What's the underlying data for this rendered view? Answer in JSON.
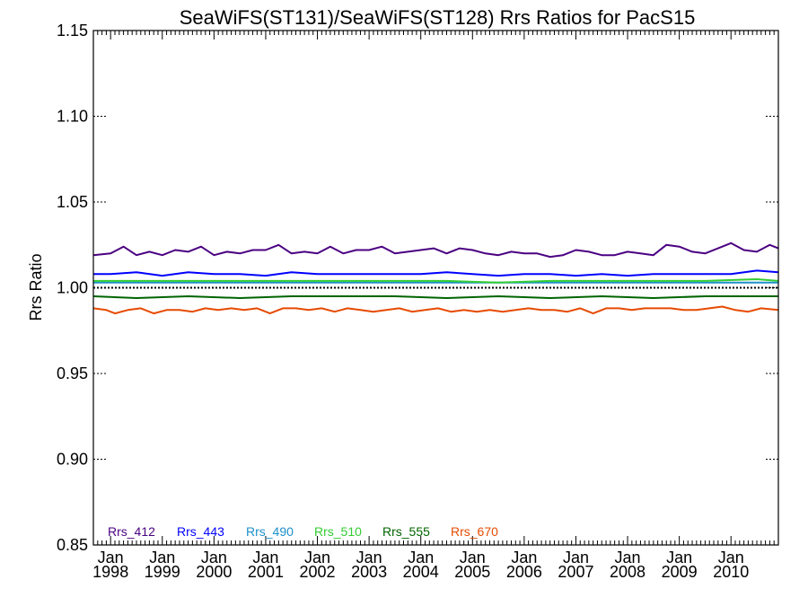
{
  "chart_data": {
    "type": "line",
    "title": "SeaWiFS(ST131)/SeaWiFS(ST128)  Rrs Ratios for PacS15",
    "xlabel": "",
    "ylabel": "Rrs Ratio",
    "ylim": [
      0.85,
      1.15
    ],
    "yticks": [
      "0.85",
      "0.90",
      "0.95",
      "1.00",
      "1.05",
      "1.10",
      "1.15"
    ],
    "x_range": [
      "1997-09",
      "2010-12"
    ],
    "x_ticks": [
      {
        "month": "Jan",
        "year": "1998"
      },
      {
        "month": "Jan",
        "year": "1999"
      },
      {
        "month": "Jan",
        "year": "2000"
      },
      {
        "month": "Jan",
        "year": "2001"
      },
      {
        "month": "Jan",
        "year": "2002"
      },
      {
        "month": "Jan",
        "year": "2003"
      },
      {
        "month": "Jan",
        "year": "2004"
      },
      {
        "month": "Jan",
        "year": "2005"
      },
      {
        "month": "Jan",
        "year": "2006"
      },
      {
        "month": "Jan",
        "year": "2007"
      },
      {
        "month": "Jan",
        "year": "2008"
      },
      {
        "month": "Jan",
        "year": "2009"
      },
      {
        "month": "Jan",
        "year": "2010"
      }
    ],
    "reference_line": 1.0,
    "grid": false,
    "legend_position": "bottom-left",
    "series": [
      {
        "name": "Rrs_412",
        "color": "#4b0082",
        "x": [
          "1997-09",
          "1998-01",
          "1998-04",
          "1998-07",
          "1998-10",
          "1999-01",
          "1999-04",
          "1999-07",
          "1999-10",
          "2000-01",
          "2000-04",
          "2000-07",
          "2000-10",
          "2001-01",
          "2001-04",
          "2001-07",
          "2001-10",
          "2002-01",
          "2002-04",
          "2002-07",
          "2002-10",
          "2003-01",
          "2003-04",
          "2003-07",
          "2003-10",
          "2004-01",
          "2004-04",
          "2004-07",
          "2004-10",
          "2005-01",
          "2005-04",
          "2005-07",
          "2005-10",
          "2006-01",
          "2006-04",
          "2006-07",
          "2006-10",
          "2007-01",
          "2007-04",
          "2007-07",
          "2007-10",
          "2008-01",
          "2008-04",
          "2008-07",
          "2008-10",
          "2009-01",
          "2009-04",
          "2009-07",
          "2009-10",
          "2010-01",
          "2010-04",
          "2010-07",
          "2010-10",
          "2010-12"
        ],
        "y": [
          1.019,
          1.02,
          1.024,
          1.019,
          1.021,
          1.019,
          1.022,
          1.021,
          1.024,
          1.019,
          1.021,
          1.02,
          1.022,
          1.022,
          1.025,
          1.02,
          1.021,
          1.02,
          1.024,
          1.02,
          1.022,
          1.022,
          1.024,
          1.02,
          1.021,
          1.022,
          1.023,
          1.02,
          1.023,
          1.022,
          1.02,
          1.019,
          1.021,
          1.02,
          1.02,
          1.018,
          1.019,
          1.022,
          1.021,
          1.019,
          1.019,
          1.021,
          1.02,
          1.019,
          1.025,
          1.024,
          1.021,
          1.02,
          1.023,
          1.026,
          1.022,
          1.021,
          1.025,
          1.023
        ]
      },
      {
        "name": "Rrs_443",
        "color": "#0000ff",
        "x": [
          "1997-09",
          "1998-01",
          "1998-07",
          "1999-01",
          "1999-07",
          "2000-01",
          "2000-07",
          "2001-01",
          "2001-07",
          "2002-01",
          "2002-07",
          "2003-01",
          "2003-07",
          "2004-01",
          "2004-07",
          "2005-01",
          "2005-07",
          "2006-01",
          "2006-07",
          "2007-01",
          "2007-07",
          "2008-01",
          "2008-07",
          "2009-01",
          "2009-07",
          "2010-01",
          "2010-07",
          "2010-12"
        ],
        "y": [
          1.008,
          1.008,
          1.009,
          1.007,
          1.009,
          1.008,
          1.008,
          1.007,
          1.009,
          1.008,
          1.008,
          1.008,
          1.008,
          1.008,
          1.009,
          1.008,
          1.007,
          1.008,
          1.008,
          1.007,
          1.008,
          1.007,
          1.008,
          1.008,
          1.008,
          1.008,
          1.01,
          1.009
        ]
      },
      {
        "name": "Rrs_490",
        "color": "#1e90c8",
        "x": [
          "1997-09",
          "1998-07",
          "1999-07",
          "2000-07",
          "2001-07",
          "2002-07",
          "2003-07",
          "2004-07",
          "2005-07",
          "2006-07",
          "2007-07",
          "2008-07",
          "2009-07",
          "2010-07",
          "2010-12"
        ],
        "y": [
          1.003,
          1.003,
          1.003,
          1.003,
          1.003,
          1.003,
          1.003,
          1.003,
          1.003,
          1.003,
          1.003,
          1.003,
          1.003,
          1.003,
          1.003
        ]
      },
      {
        "name": "Rrs_510",
        "color": "#33cc33",
        "x": [
          "1997-09",
          "1998-07",
          "1999-07",
          "2000-07",
          "2001-07",
          "2002-07",
          "2003-07",
          "2004-07",
          "2005-07",
          "2006-07",
          "2007-07",
          "2008-07",
          "2009-07",
          "2010-07",
          "2010-12"
        ],
        "y": [
          1.004,
          1.004,
          1.004,
          1.004,
          1.004,
          1.004,
          1.004,
          1.004,
          1.003,
          1.004,
          1.004,
          1.004,
          1.004,
          1.005,
          1.004
        ]
      },
      {
        "name": "Rrs_555",
        "color": "#006400",
        "x": [
          "1997-09",
          "1998-07",
          "1999-07",
          "2000-07",
          "2001-07",
          "2002-07",
          "2003-07",
          "2004-07",
          "2005-07",
          "2006-07",
          "2007-07",
          "2008-07",
          "2009-07",
          "2010-07",
          "2010-12"
        ],
        "y": [
          0.995,
          0.994,
          0.995,
          0.994,
          0.995,
          0.995,
          0.995,
          0.994,
          0.995,
          0.994,
          0.995,
          0.994,
          0.995,
          0.995,
          0.995
        ]
      },
      {
        "name": "Rrs_670",
        "color": "#e64a00",
        "x": [
          "1997-09",
          "1997-12",
          "1998-02",
          "1998-05",
          "1998-08",
          "1998-11",
          "1999-02",
          "1999-05",
          "1999-08",
          "1999-11",
          "2000-02",
          "2000-05",
          "2000-08",
          "2000-11",
          "2001-02",
          "2001-05",
          "2001-08",
          "2001-11",
          "2002-02",
          "2002-05",
          "2002-08",
          "2002-11",
          "2003-02",
          "2003-05",
          "2003-08",
          "2003-11",
          "2004-02",
          "2004-05",
          "2004-08",
          "2004-11",
          "2005-02",
          "2005-05",
          "2005-08",
          "2005-11",
          "2006-02",
          "2006-05",
          "2006-08",
          "2006-11",
          "2007-02",
          "2007-05",
          "2007-08",
          "2007-11",
          "2008-02",
          "2008-05",
          "2008-08",
          "2008-11",
          "2009-02",
          "2009-05",
          "2009-08",
          "2009-11",
          "2010-02",
          "2010-05",
          "2010-08",
          "2010-12"
        ],
        "y": [
          0.988,
          0.987,
          0.985,
          0.987,
          0.988,
          0.985,
          0.987,
          0.987,
          0.986,
          0.988,
          0.987,
          0.988,
          0.987,
          0.988,
          0.985,
          0.988,
          0.988,
          0.987,
          0.988,
          0.986,
          0.988,
          0.987,
          0.986,
          0.987,
          0.988,
          0.986,
          0.987,
          0.988,
          0.986,
          0.987,
          0.986,
          0.987,
          0.986,
          0.987,
          0.988,
          0.987,
          0.987,
          0.986,
          0.988,
          0.985,
          0.988,
          0.988,
          0.987,
          0.988,
          0.988,
          0.988,
          0.987,
          0.987,
          0.988,
          0.989,
          0.987,
          0.986,
          0.988,
          0.987
        ]
      }
    ]
  }
}
